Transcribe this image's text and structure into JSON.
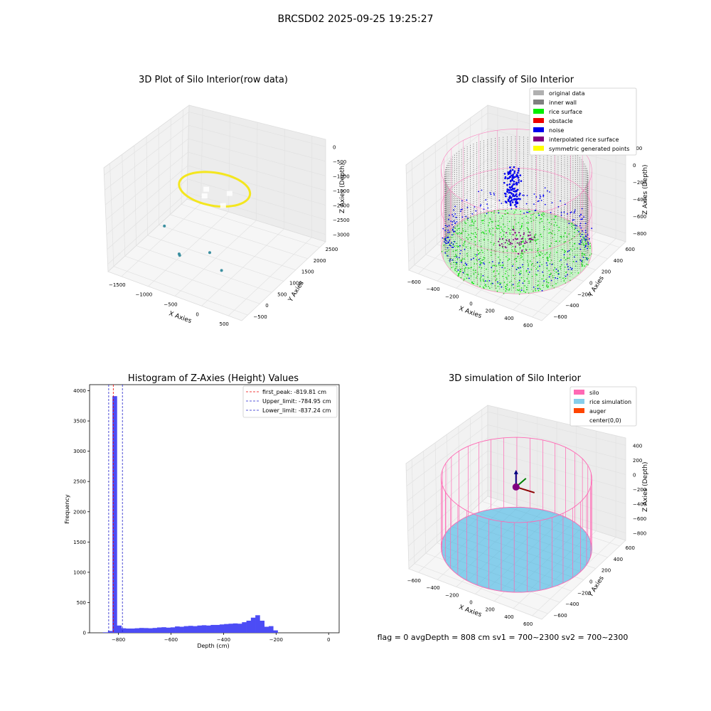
{
  "figure": {
    "suptitle": "BRCSD02 2025-09-25 19:25:27",
    "status_text": "flag = 0     avgDepth = 808 cm  sv1 = 700~2300  sv2 = 700~2300"
  },
  "colors": {
    "original_data": "#b0b0b0",
    "inner_wall": "#808080",
    "rice_surface": "#00ee00",
    "obstacle": "#ee0000",
    "noise": "#0000ee",
    "interpolated_rice_surface": "#800080",
    "symmetric_generated_points": "#ffff00",
    "silo": "#ff69b4",
    "rice_simulation": "#87ceeb",
    "auger": "#ff4500",
    "histogram_bar": "#4c4cf5",
    "first_peak_line": "#ee0000",
    "limit_lines": "#2222cc"
  },
  "chart_data": [
    {
      "id": "raw",
      "type": "scatter3d",
      "title": "3D Plot of Silo Interior(row data)",
      "xlabel": "X Axies",
      "ylabel": "Y Axies",
      "zlabel": "Z Axies (Depth)",
      "xticks": [
        "−1500",
        "−1000",
        "−500",
        "0",
        "500"
      ],
      "yticks": [
        "−500",
        "0",
        "500",
        "1000",
        "1500",
        "2000",
        "2500"
      ],
      "zticks": [
        "0",
        "−500",
        "−1000",
        "−1500",
        "−2000",
        "−2500",
        "−3000"
      ],
      "xlim": [
        -1900,
        700
      ],
      "ylim": [
        -700,
        2800
      ],
      "zlim": [
        -3300,
        100
      ],
      "colormap": "viridis",
      "ring": {
        "cx": -600,
        "cy": 1000,
        "radius": 620,
        "z_top": -1000,
        "z_bottom": -1700
      },
      "outliers": [
        {
          "x": -1250,
          "y": 300,
          "z": -2100
        },
        {
          "x": -900,
          "y": 150,
          "z": -2700
        },
        {
          "x": -880,
          "y": 130,
          "z": -2720
        },
        {
          "x": -400,
          "y": 350,
          "z": -2500
        },
        {
          "x": -150,
          "y": 300,
          "z": -2900
        }
      ]
    },
    {
      "id": "classify",
      "type": "scatter3d",
      "title": "3D classify of Silo Interior",
      "xlabel": "X Axies",
      "ylabel": "Y Axies",
      "zlabel": "Z Axies (Depth)",
      "xticks": [
        "−600",
        "−400",
        "−200",
        "0",
        "200",
        "400",
        "600"
      ],
      "yticks": [
        "−600",
        "−400",
        "−200",
        "0",
        "200",
        "400",
        "600"
      ],
      "zticks": [
        "200",
        "0",
        "−200",
        "−400",
        "−600",
        "−800"
      ],
      "legend_top": "200",
      "xlim": [
        -650,
        650
      ],
      "ylim": [
        -650,
        650
      ],
      "zlim": [
        -900,
        300
      ],
      "legend": [
        {
          "label": "original data",
          "color": "#b0b0b0"
        },
        {
          "label": "inner wall",
          "color": "#808080"
        },
        {
          "label": "rice surface",
          "color": "#00ee00"
        },
        {
          "label": "obstacle",
          "color": "#ee0000"
        },
        {
          "label": "noise",
          "color": "#0000ee"
        },
        {
          "label": "interpolated rice surface",
          "color": "#800080"
        },
        {
          "label": "symmetric generated points",
          "color": "#ffff00"
        }
      ],
      "silo": {
        "radius": 620,
        "z_top": 100,
        "z_bottom": -820
      },
      "rice_surface_z": -820
    },
    {
      "id": "histogram",
      "type": "bar",
      "title": "Histogram of Z-Axies (Height) Values",
      "xlabel": "Depth (cm)",
      "ylabel": "Frequency",
      "xlim": [
        -910,
        40
      ],
      "ylim": [
        0,
        4100
      ],
      "xticks": [
        -800,
        -600,
        -400,
        -200,
        0
      ],
      "yticks": [
        0,
        500,
        1000,
        1500,
        2000,
        2500,
        3000,
        3500,
        4000
      ],
      "bins_start": -840,
      "bin_width": 17,
      "values": [
        30,
        3910,
        120,
        75,
        70,
        70,
        75,
        80,
        78,
        75,
        80,
        88,
        92,
        85,
        90,
        105,
        100,
        110,
        115,
        110,
        120,
        125,
        120,
        130,
        130,
        138,
        145,
        150,
        155,
        150,
        175,
        200,
        250,
        290,
        200,
        100,
        110,
        40
      ],
      "pre_bins": [
        {
          "x": -860,
          "width": 20,
          "value": 8
        }
      ],
      "vlines": [
        {
          "label": "first_peak: -819.81 cm",
          "x": -819.81,
          "color": "#ee0000"
        },
        {
          "label": "Upper_limit: -784.95 cm",
          "x": -784.95,
          "color": "#2222cc"
        },
        {
          "label": "Lower_limit: -837.24 cm",
          "x": -837.24,
          "color": "#2222cc"
        }
      ]
    },
    {
      "id": "simulation",
      "type": "surface3d",
      "title": "3D simulation of Silo Interior",
      "xlabel": "X Axies",
      "ylabel": "Y Axies",
      "zlabel": "Z Axies (Depth)",
      "xticks": [
        "−600",
        "−400",
        "−200",
        "0",
        "200",
        "400",
        "600"
      ],
      "yticks": [
        "−600",
        "−400",
        "−200",
        "0",
        "200",
        "400",
        "600"
      ],
      "zticks": [
        "400",
        "200",
        "0",
        "−200",
        "−400",
        "−600",
        "−800"
      ],
      "xlim": [
        -650,
        650
      ],
      "ylim": [
        -650,
        650
      ],
      "zlim": [
        -900,
        450
      ],
      "legend": [
        {
          "label": "silo",
          "color": "#ff69b4"
        },
        {
          "label": "rice simulation",
          "color": "#87ceeb"
        },
        {
          "label": "auger",
          "color": "#ff4500"
        },
        {
          "label": "center(0,0)",
          "color": "none"
        }
      ],
      "silo": {
        "radius": 620,
        "z_top": 100,
        "z_bottom": -808
      },
      "rice_depth": -808
    }
  ]
}
